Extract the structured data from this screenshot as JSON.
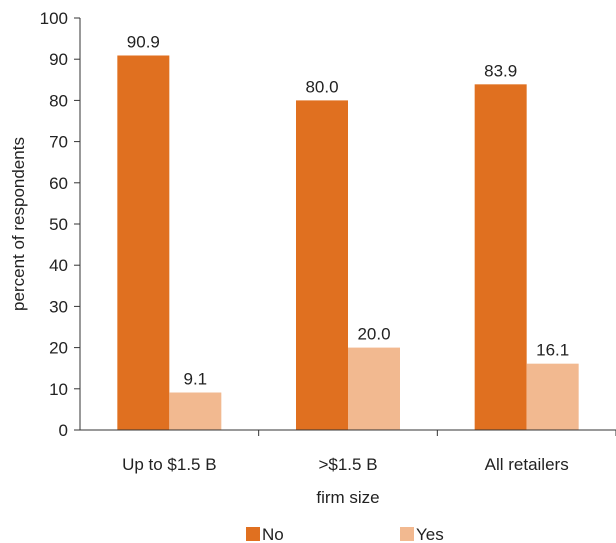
{
  "chart_data": {
    "type": "bar",
    "categories": [
      "Up to $1.5 B",
      ">$1.5 B",
      "All retailers"
    ],
    "series": [
      {
        "name": "No",
        "values": [
          90.9,
          80.0,
          83.9
        ],
        "color": "#E07020"
      },
      {
        "name": "Yes",
        "values": [
          9.1,
          20.0,
          16.1
        ],
        "color": "#F2B990"
      }
    ],
    "data_labels": [
      [
        "90.9",
        "80.0",
        "83.9"
      ],
      [
        "9.1",
        "20.0",
        "16.1"
      ]
    ],
    "xlabel": "firm size",
    "ylabel": "percent of respondents",
    "ylim": [
      0,
      100
    ],
    "yticks": [
      0,
      10,
      20,
      30,
      40,
      50,
      60,
      70,
      80,
      90,
      100
    ],
    "grid": false,
    "legend": "bottom"
  }
}
